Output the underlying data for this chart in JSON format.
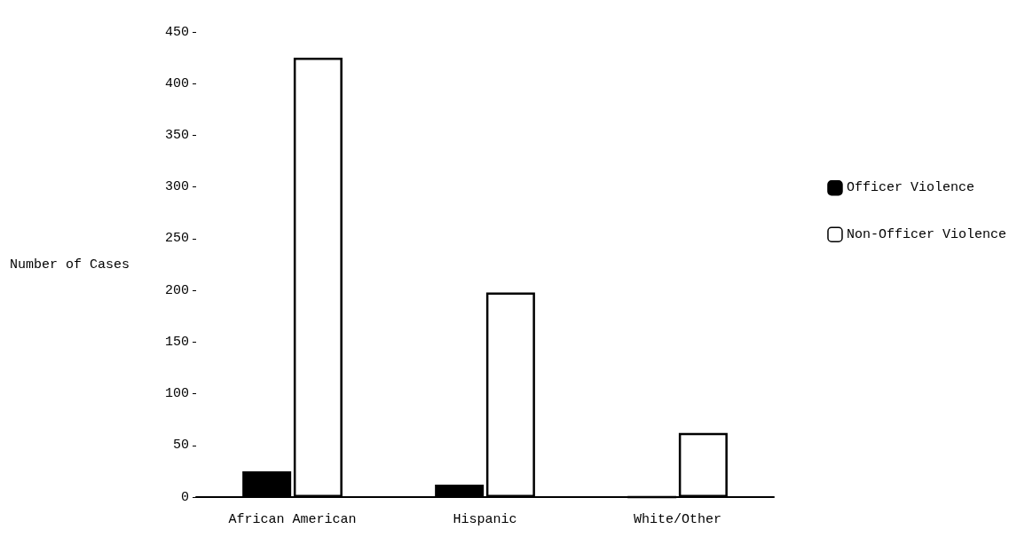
{
  "chart_data": {
    "type": "bar",
    "ylabel": "Number of Cases",
    "categories": [
      "African American",
      "Hispanic",
      "White/Other"
    ],
    "series": [
      {
        "name": "Officer Violence",
        "color": "#000000",
        "values": [
          25,
          12,
          0
        ]
      },
      {
        "name": "Non-Officer Violence",
        "color": "#ffffff",
        "values": [
          425,
          198,
          62
        ]
      }
    ],
    "ylim": [
      0,
      450
    ],
    "yticks": [
      0,
      50,
      100,
      150,
      200,
      250,
      300,
      350,
      400,
      450
    ],
    "grid": false,
    "legend": "right"
  }
}
